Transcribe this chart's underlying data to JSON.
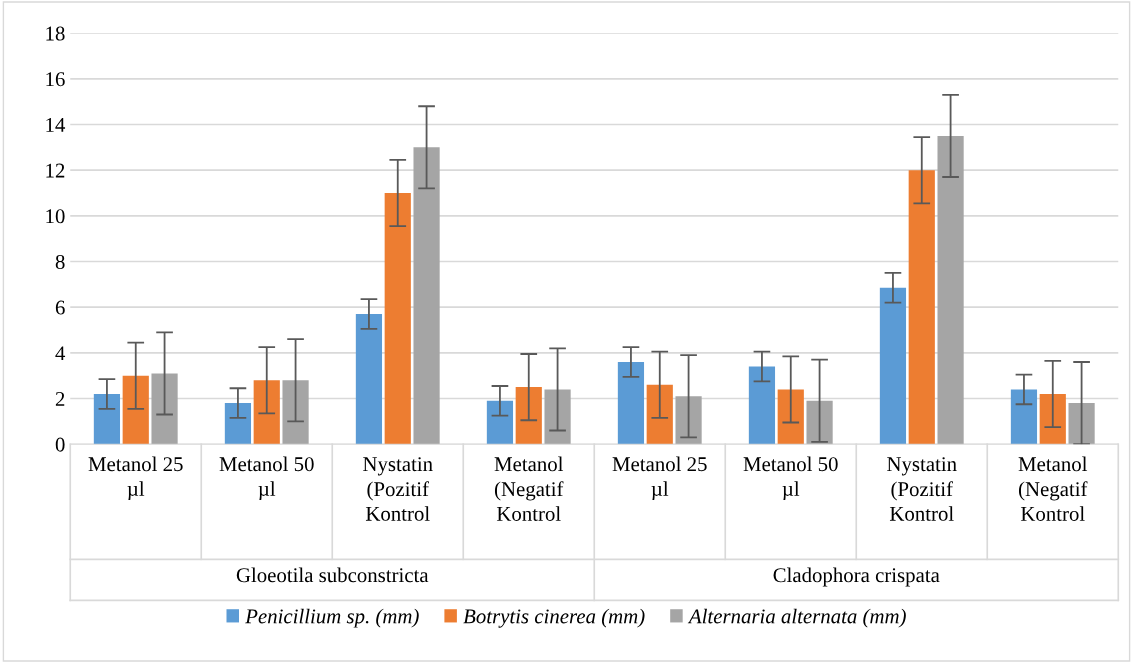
{
  "chart_data": {
    "type": "bar",
    "categories": [
      "Metanol 25 µl",
      "Metanol 50 µl",
      "Nystatin (Pozitif Kontrol",
      "Metanol (Negatif Kontrol",
      "Metanol 25 µl",
      "Metanol 50 µl",
      "Nystatin (Pozitif Kontrol",
      "Metanol (Negatif Kontrol"
    ],
    "series": [
      {
        "name": "Penicillium sp. (mm)",
        "color": "#5b9bd5",
        "values": [
          2.2,
          1.8,
          5.7,
          1.9,
          3.6,
          3.4,
          6.85,
          2.4
        ],
        "errors": [
          0.65,
          0.65,
          0.65,
          0.65,
          0.65,
          0.65,
          0.65,
          0.65
        ]
      },
      {
        "name": "Botrytis cinerea (mm)",
        "color": "#ed7d31",
        "values": [
          3.0,
          2.8,
          11.0,
          2.5,
          2.6,
          2.4,
          12.0,
          2.2
        ],
        "errors": [
          1.45,
          1.45,
          1.45,
          1.45,
          1.45,
          1.45,
          1.45,
          1.45
        ]
      },
      {
        "name": "Alternaria alternata (mm)",
        "color": "#a5a5a5",
        "values": [
          3.1,
          2.8,
          13.0,
          2.4,
          2.1,
          1.9,
          13.5,
          1.8
        ],
        "errors": [
          1.8,
          1.8,
          1.8,
          1.8,
          1.8,
          1.8,
          1.8,
          1.8
        ]
      }
    ],
    "annotations": [
      "Gloeotila subconstricta",
      "Cladophora crispata"
    ],
    "ylim": [
      0,
      18
    ],
    "yticks": [
      0,
      2,
      4,
      6,
      8,
      10,
      12,
      14,
      16,
      18
    ],
    "grid": "y",
    "legend": "bottom"
  }
}
